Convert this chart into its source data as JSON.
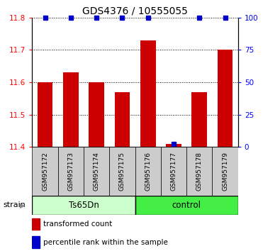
{
  "title": "GDS4376 / 10555055",
  "samples": [
    "GSM957172",
    "GSM957173",
    "GSM957174",
    "GSM957175",
    "GSM957176",
    "GSM957177",
    "GSM957178",
    "GSM957179"
  ],
  "red_values": [
    11.6,
    11.63,
    11.6,
    11.57,
    11.73,
    11.41,
    11.57,
    11.7
  ],
  "blue_y_vals": [
    100,
    100,
    100,
    100,
    100,
    2,
    100,
    100
  ],
  "ylim_left": [
    11.4,
    11.8
  ],
  "ylim_right": [
    0,
    100
  ],
  "yticks_left": [
    11.4,
    11.5,
    11.6,
    11.7,
    11.8
  ],
  "yticks_right": [
    0,
    25,
    50,
    75,
    100
  ],
  "group_label": "strain",
  "bar_color": "#cc0000",
  "blue_color": "#0000cc",
  "bar_bottom": 11.4,
  "bar_width": 0.6,
  "sample_box_color": "#cccccc",
  "ts65dn_color": "#ccffcc",
  "control_color": "#44ee44",
  "background_color": "#ffffff",
  "title_fontsize": 10,
  "tick_fontsize": 7.5,
  "sample_fontsize": 6.5,
  "group_fontsize": 8.5
}
